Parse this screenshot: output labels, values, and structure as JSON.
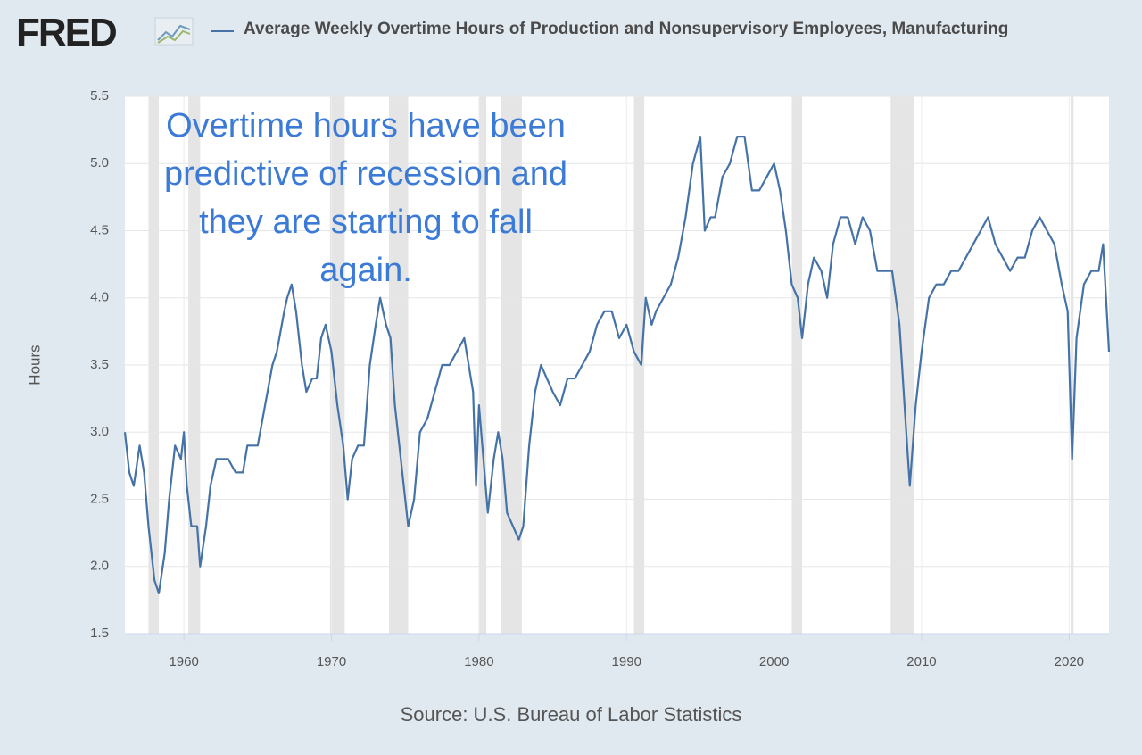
{
  "chart_data": {
    "type": "line",
    "logo": "FRED",
    "annotation": [
      "Overtime hours have been",
      "predictive of recession and",
      "they are starting to fall",
      "again."
    ],
    "y_label": "Hours",
    "source": "Source: U.S. Bureau of Labor Statistics",
    "xlim": [
      1956,
      2022.7
    ],
    "xticks": [
      1960,
      1970,
      1980,
      1990,
      2000,
      2010,
      2020
    ],
    "ylim": [
      1.5,
      5.5
    ],
    "yticks": [
      1.5,
      {
        "value": 2,
        "label": "2.0"
      },
      2.5,
      {
        "value": 3,
        "label": "3.0"
      },
      3.5,
      {
        "value": 4,
        "label": "4.0"
      },
      4.5,
      {
        "value": 5,
        "label": "5.0"
      },
      5.5
    ],
    "grid": true,
    "recessions": [
      [
        1957.6,
        1958.3
      ],
      [
        1960.3,
        1961.1
      ],
      [
        1969.9,
        1970.9
      ],
      [
        1973.9,
        1975.2
      ],
      [
        1980.0,
        1980.5
      ],
      [
        1981.5,
        1982.9
      ],
      [
        1990.5,
        1991.2
      ],
      [
        2001.2,
        2001.9
      ],
      [
        2007.9,
        2009.5
      ],
      [
        2020.1,
        2020.3
      ]
    ],
    "x": [
      1956.0,
      1956.3,
      1956.6,
      1957.0,
      1957.3,
      1957.6,
      1958.0,
      1958.3,
      1958.7,
      1959.0,
      1959.4,
      1959.8,
      1960.0,
      1960.2,
      1960.5,
      1960.9,
      1961.1,
      1961.5,
      1961.8,
      1962.2,
      1963.0,
      1963.5,
      1964.0,
      1964.3,
      1965.0,
      1965.5,
      1966.0,
      1966.3,
      1966.8,
      1967.0,
      1967.3,
      1967.6,
      1968.0,
      1968.3,
      1968.7,
      1969.0,
      1969.3,
      1969.6,
      1970.0,
      1970.4,
      1970.8,
      1971.1,
      1971.4,
      1971.8,
      1972.2,
      1972.6,
      1973.0,
      1973.3,
      1973.7,
      1974.0,
      1974.3,
      1974.6,
      1975.0,
      1975.2,
      1975.6,
      1976.0,
      1976.5,
      1977.0,
      1977.5,
      1978.0,
      1978.5,
      1979.0,
      1979.3,
      1979.6,
      1979.8,
      1980.0,
      1980.3,
      1980.6,
      1981.0,
      1981.3,
      1981.6,
      1981.9,
      1982.3,
      1982.7,
      1983.0,
      1983.4,
      1983.8,
      1984.2,
      1984.6,
      1985.0,
      1985.5,
      1986.0,
      1986.5,
      1987.0,
      1987.5,
      1988.0,
      1988.5,
      1989.0,
      1989.5,
      1990.0,
      1990.5,
      1991.0,
      1991.3,
      1991.7,
      1992.0,
      1992.5,
      1993.0,
      1993.5,
      1994.0,
      1994.5,
      1995.0,
      1995.3,
      1995.7,
      1996.0,
      1996.5,
      1997.0,
      1997.5,
      1998.0,
      1998.5,
      1999.0,
      1999.5,
      2000.0,
      2000.4,
      2000.8,
      2001.2,
      2001.6,
      2001.9,
      2002.3,
      2002.7,
      2003.2,
      2003.6,
      2004.0,
      2004.5,
      2005.0,
      2005.5,
      2006.0,
      2006.5,
      2007.0,
      2007.5,
      2008.0,
      2008.5,
      2008.9,
      2009.2,
      2009.6,
      2010.0,
      2010.5,
      2011.0,
      2011.5,
      2012.0,
      2012.5,
      2013.0,
      2013.5,
      2014.0,
      2014.5,
      2015.0,
      2015.5,
      2016.0,
      2016.5,
      2017.0,
      2017.5,
      2018.0,
      2018.5,
      2019.0,
      2019.5,
      2019.9,
      2020.2,
      2020.5,
      2021.0,
      2021.5,
      2022.0,
      2022.3,
      2022.5,
      2022.7
    ],
    "series": [
      {
        "name": "Average Weekly Overtime Hours of Production and Nonsupervisory Employees, Manufacturing",
        "color": "#4572a7",
        "values": [
          3.0,
          2.7,
          2.6,
          2.9,
          2.7,
          2.3,
          1.9,
          1.8,
          2.1,
          2.5,
          2.9,
          2.8,
          3.0,
          2.6,
          2.3,
          2.3,
          2.0,
          2.3,
          2.6,
          2.8,
          2.8,
          2.7,
          2.7,
          2.9,
          2.9,
          3.2,
          3.5,
          3.6,
          3.9,
          4.0,
          4.1,
          3.9,
          3.5,
          3.3,
          3.4,
          3.4,
          3.7,
          3.8,
          3.6,
          3.2,
          2.9,
          2.5,
          2.8,
          2.9,
          2.9,
          3.5,
          3.8,
          4.0,
          3.8,
          3.7,
          3.2,
          2.9,
          2.5,
          2.3,
          2.5,
          3.0,
          3.1,
          3.3,
          3.5,
          3.5,
          3.6,
          3.7,
          3.5,
          3.3,
          2.6,
          3.2,
          2.8,
          2.4,
          2.8,
          3.0,
          2.8,
          2.4,
          2.3,
          2.2,
          2.3,
          2.9,
          3.3,
          3.5,
          3.4,
          3.3,
          3.2,
          3.4,
          3.4,
          3.5,
          3.6,
          3.8,
          3.9,
          3.9,
          3.7,
          3.8,
          3.6,
          3.5,
          4.0,
          3.8,
          3.9,
          4.0,
          4.1,
          4.3,
          4.6,
          5.0,
          5.2,
          4.5,
          4.6,
          4.6,
          4.9,
          5.0,
          5.2,
          5.2,
          4.8,
          4.8,
          4.9,
          5.0,
          4.8,
          4.5,
          4.1,
          4.0,
          3.7,
          4.1,
          4.3,
          4.2,
          4.0,
          4.4,
          4.6,
          4.6,
          4.4,
          4.6,
          4.5,
          4.2,
          4.2,
          4.2,
          3.8,
          3.1,
          2.6,
          3.2,
          3.6,
          4.0,
          4.1,
          4.1,
          4.2,
          4.2,
          4.3,
          4.4,
          4.5,
          4.6,
          4.4,
          4.3,
          4.2,
          4.3,
          4.3,
          4.5,
          4.6,
          4.5,
          4.4,
          4.1,
          3.9,
          2.8,
          3.7,
          4.1,
          4.2,
          4.2,
          4.4,
          4.0,
          3.6
        ]
      }
    ]
  }
}
